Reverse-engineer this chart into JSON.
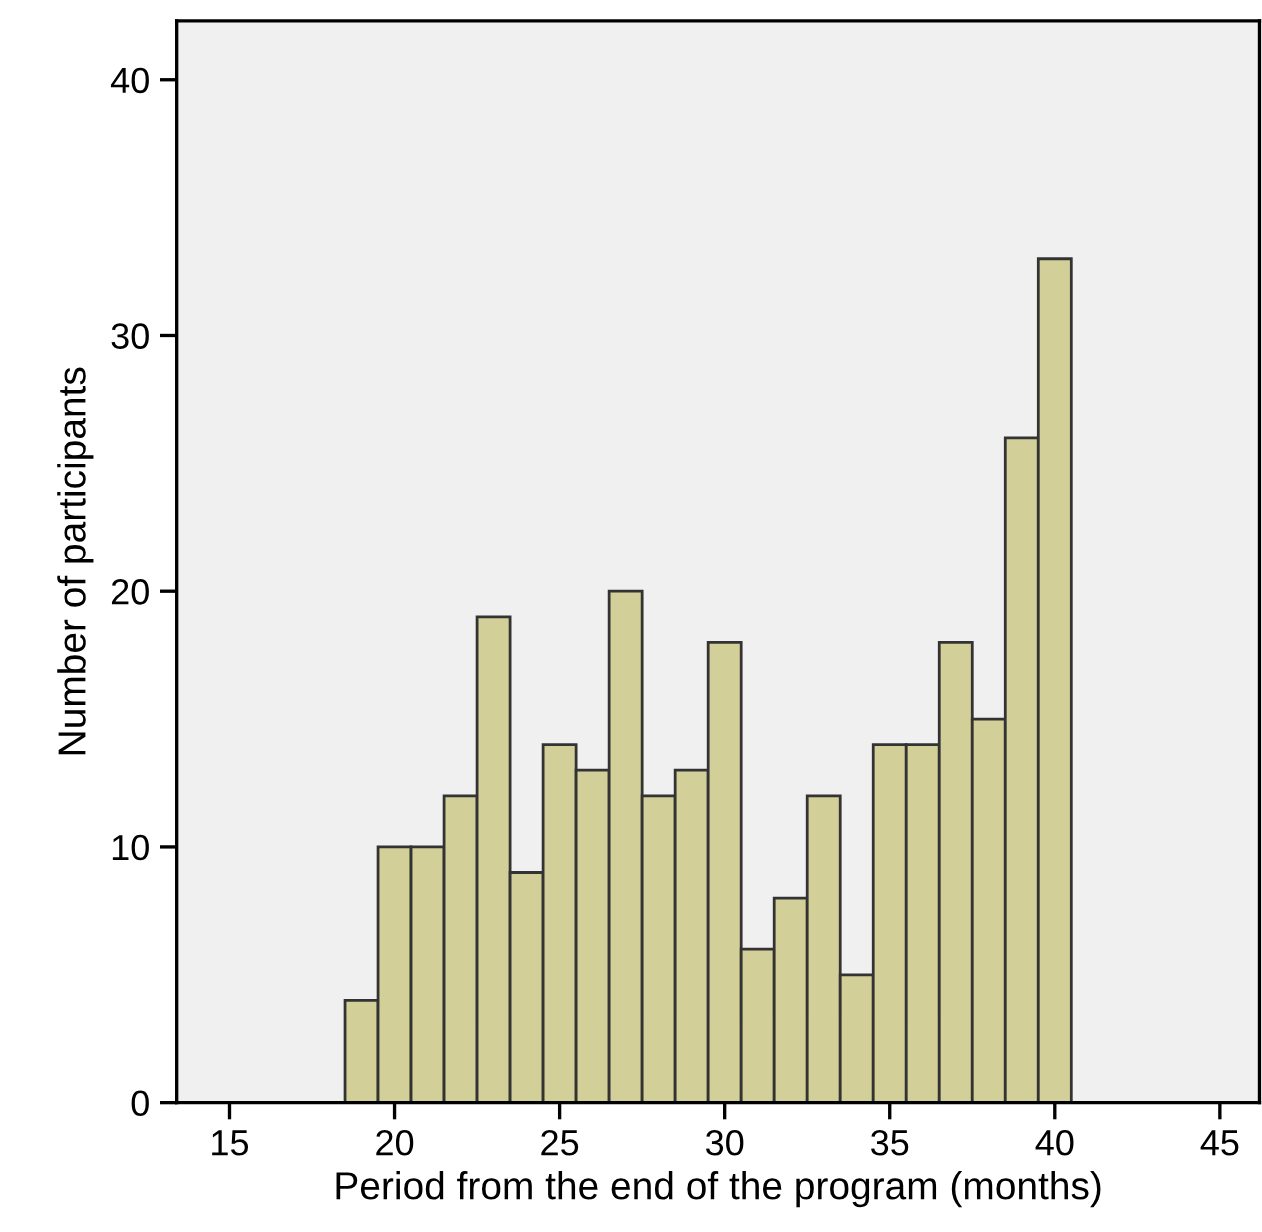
{
  "chart_data": {
    "type": "histogram",
    "xlabel": "Period from the end of the program (months)",
    "ylabel": "Number of participants",
    "bins": [
      18.5,
      19.5,
      20.5,
      21.5,
      22.5,
      23.5,
      24.5,
      25.5,
      26.5,
      27.5,
      28.5,
      29.5,
      30.5,
      31.5,
      32.5,
      33.5,
      34.5,
      35.5,
      36.5,
      37.5,
      38.5,
      39.5,
      40.5
    ],
    "values": [
      4,
      10,
      10,
      12,
      19,
      9,
      14,
      13,
      20,
      12,
      13,
      18,
      6,
      8,
      12,
      5,
      14,
      14,
      18,
      15,
      26,
      33
    ],
    "color": "#d3cf98",
    "xlim": [
      13.4,
      46.2
    ],
    "xticks": [
      15,
      20,
      25,
      30,
      35,
      40,
      45
    ],
    "ylim": [
      0,
      42.3
    ],
    "yticks": [
      0,
      10,
      20,
      30,
      40
    ],
    "grid": false,
    "legend": false
  }
}
